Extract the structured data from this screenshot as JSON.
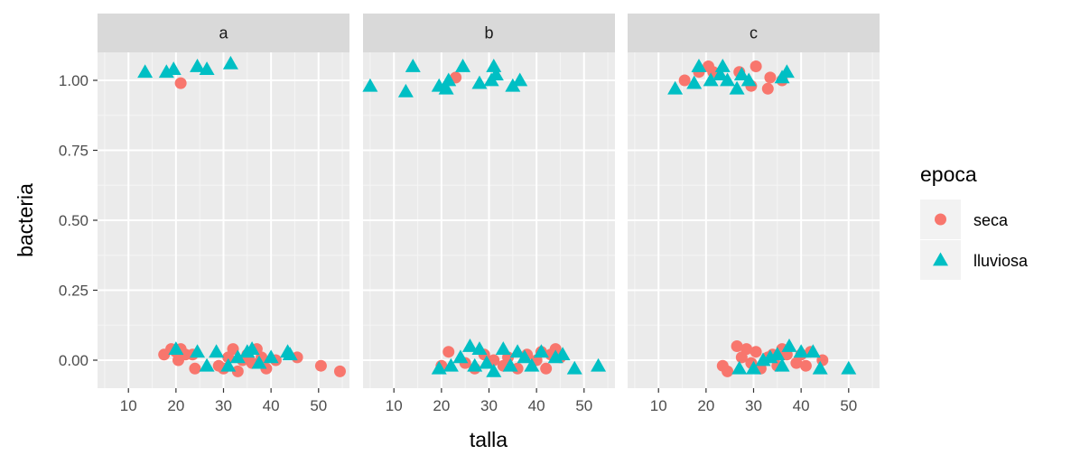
{
  "chart_data": {
    "type": "scatter",
    "xlabel": "talla",
    "ylabel": "bacteria",
    "xlim": [
      3.5,
      56.5
    ],
    "ylim": [
      -0.1,
      1.1
    ],
    "x_ticks": [
      10,
      20,
      30,
      40,
      50
    ],
    "y_ticks": [
      0.0,
      0.25,
      0.5,
      0.75,
      1.0
    ],
    "y_tick_labels": [
      "0.00",
      "0.25",
      "0.50",
      "0.75",
      "1.00"
    ],
    "grid": true,
    "legend": {
      "title": "epoca",
      "position": "right",
      "entries": [
        {
          "label": "seca",
          "shape": "circle",
          "color": "#F8766D"
        },
        {
          "label": "lluviosa",
          "shape": "triangle",
          "color": "#00BFC4"
        }
      ]
    },
    "panels": [
      {
        "strip": "a",
        "series": [
          {
            "name": "seca",
            "points": [
              [
                21,
                0.99
              ],
              [
                17.5,
                0.02
              ],
              [
                19,
                0.04
              ],
              [
                20,
                0.03
              ],
              [
                20.5,
                0.0
              ],
              [
                21,
                0.04
              ],
              [
                22,
                0.02
              ],
              [
                23.5,
                0.02
              ],
              [
                24,
                -0.03
              ],
              [
                29,
                -0.02
              ],
              [
                30,
                -0.03
              ],
              [
                31,
                0.01
              ],
              [
                32,
                0.04
              ],
              [
                33,
                -0.04
              ],
              [
                34,
                0.0
              ],
              [
                35,
                0.02
              ],
              [
                36,
                -0.01
              ],
              [
                37,
                0.04
              ],
              [
                38,
                0.01
              ],
              [
                39,
                -0.03
              ],
              [
                41,
                0.0
              ],
              [
                45.5,
                0.01
              ],
              [
                50.5,
                -0.02
              ],
              [
                54.5,
                -0.04
              ]
            ]
          },
          {
            "name": "lluviosa",
            "points": [
              [
                13.5,
                1.03
              ],
              [
                18,
                1.03
              ],
              [
                19.5,
                1.04
              ],
              [
                24.5,
                1.05
              ],
              [
                26.5,
                1.04
              ],
              [
                31.5,
                1.06
              ],
              [
                20,
                0.04
              ],
              [
                24.5,
                0.03
              ],
              [
                26.5,
                -0.02
              ],
              [
                28.5,
                0.03
              ],
              [
                31,
                -0.02
              ],
              [
                33,
                0.01
              ],
              [
                35,
                0.03
              ],
              [
                36,
                0.04
              ],
              [
                37.5,
                -0.01
              ],
              [
                40,
                0.01
              ],
              [
                43.5,
                0.03
              ],
              [
                44,
                0.02
              ]
            ]
          }
        ]
      },
      {
        "strip": "b",
        "series": [
          {
            "name": "seca",
            "points": [
              [
                23,
                1.01
              ],
              [
                20,
                -0.02
              ],
              [
                21.5,
                0.03
              ],
              [
                25,
                -0.01
              ],
              [
                27,
                -0.03
              ],
              [
                29,
                0.02
              ],
              [
                31,
                0.0
              ],
              [
                33,
                -0.02
              ],
              [
                34,
                0.01
              ],
              [
                36,
                -0.03
              ],
              [
                38,
                0.02
              ],
              [
                40,
                0.0
              ],
              [
                41,
                0.03
              ],
              [
                42,
                -0.03
              ],
              [
                43,
                0.02
              ],
              [
                44,
                0.04
              ],
              [
                45,
                0.01
              ]
            ]
          },
          {
            "name": "lluviosa",
            "points": [
              [
                5,
                0.98
              ],
              [
                12.5,
                0.96
              ],
              [
                14,
                1.05
              ],
              [
                19.5,
                0.98
              ],
              [
                21,
                0.97
              ],
              [
                21.5,
                1.0
              ],
              [
                24.5,
                1.05
              ],
              [
                28,
                0.99
              ],
              [
                30.5,
                1.0
              ],
              [
                31,
                1.05
              ],
              [
                31.5,
                1.02
              ],
              [
                35,
                0.98
              ],
              [
                36.5,
                1.0
              ],
              [
                19.5,
                -0.03
              ],
              [
                22,
                -0.02
              ],
              [
                24,
                0.01
              ],
              [
                26,
                0.05
              ],
              [
                27,
                -0.02
              ],
              [
                28,
                0.04
              ],
              [
                29.5,
                -0.01
              ],
              [
                31,
                -0.04
              ],
              [
                33,
                0.04
              ],
              [
                34.5,
                -0.02
              ],
              [
                36,
                0.03
              ],
              [
                37.5,
                0.01
              ],
              [
                39,
                -0.02
              ],
              [
                41,
                0.03
              ],
              [
                44,
                0.01
              ],
              [
                45.5,
                0.02
              ],
              [
                48,
                -0.03
              ],
              [
                53,
                -0.02
              ]
            ]
          }
        ]
      },
      {
        "strip": "c",
        "series": [
          {
            "name": "seca",
            "points": [
              [
                15.5,
                1.0
              ],
              [
                18.5,
                1.03
              ],
              [
                20.5,
                1.05
              ],
              [
                21.5,
                1.03
              ],
              [
                27,
                1.03
              ],
              [
                29.5,
                0.98
              ],
              [
                30.5,
                1.05
              ],
              [
                33,
                0.97
              ],
              [
                33.5,
                1.01
              ],
              [
                36,
                1.0
              ],
              [
                23.5,
                -0.02
              ],
              [
                24.5,
                -0.04
              ],
              [
                26.5,
                0.05
              ],
              [
                27.5,
                0.01
              ],
              [
                28.5,
                0.04
              ],
              [
                29.5,
                -0.01
              ],
              [
                30.5,
                0.03
              ],
              [
                31.5,
                -0.03
              ],
              [
                33,
                0.01
              ],
              [
                34,
                0.02
              ],
              [
                35,
                -0.02
              ],
              [
                36,
                0.04
              ],
              [
                37,
                0.02
              ],
              [
                39,
                -0.01
              ],
              [
                40,
                0.02
              ],
              [
                41,
                -0.02
              ],
              [
                42,
                0.03
              ],
              [
                44.5,
                0.0
              ]
            ]
          },
          {
            "name": "lluviosa",
            "points": [
              [
                13.5,
                0.97
              ],
              [
                17.5,
                0.99
              ],
              [
                18.5,
                1.05
              ],
              [
                21,
                1.0
              ],
              [
                23,
                1.02
              ],
              [
                23.5,
                1.05
              ],
              [
                24.5,
                1.0
              ],
              [
                26.5,
                0.97
              ],
              [
                27.5,
                1.02
              ],
              [
                29,
                1.0
              ],
              [
                36,
                1.01
              ],
              [
                37,
                1.03
              ],
              [
                27,
                -0.03
              ],
              [
                30,
                -0.03
              ],
              [
                32,
                0.0
              ],
              [
                33.5,
                0.01
              ],
              [
                35,
                0.02
              ],
              [
                36,
                -0.02
              ],
              [
                37.5,
                0.05
              ],
              [
                40,
                0.03
              ],
              [
                42.5,
                0.03
              ],
              [
                44,
                -0.03
              ],
              [
                50,
                -0.03
              ]
            ]
          }
        ]
      }
    ]
  }
}
